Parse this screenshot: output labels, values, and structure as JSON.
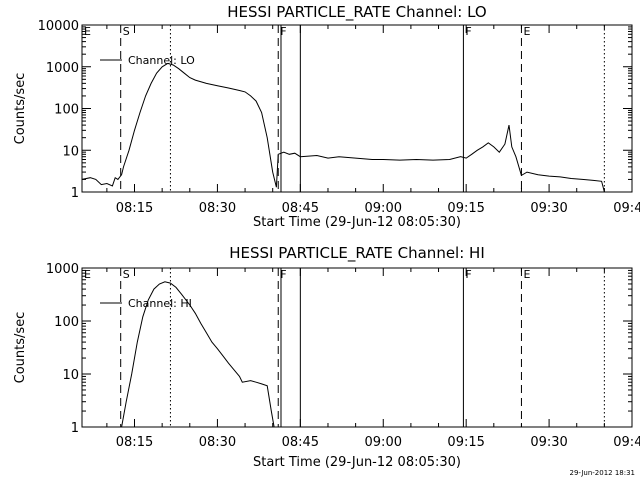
{
  "chart_data": [
    {
      "type": "line",
      "title": "HESSI PARTICLE_RATE Channel: LO",
      "xlabel": "Start Time (29-Jun-12 08:05:30)",
      "ylabel": "Counts/sec",
      "yscale": "log",
      "ylim": [
        1,
        10000
      ],
      "xlim": [
        "08:05:30",
        "09:45:00"
      ],
      "x_ticks": [
        "08:15",
        "08:30",
        "08:45",
        "09:00",
        "09:15",
        "09:30",
        "09:45"
      ],
      "y_ticks": [
        "1",
        "10",
        "100",
        "1000",
        "10000"
      ],
      "legend": {
        "label": "Channel: LO",
        "placement": "top-left"
      },
      "markers": [
        {
          "label": "E",
          "time": "08:05:30",
          "style": "solid"
        },
        {
          "label": "S",
          "time": "08:12:30",
          "style": "dashed"
        },
        {
          "label": "",
          "time": "08:21:30",
          "style": "dotted"
        },
        {
          "label": "F",
          "time": "08:41:00",
          "style": "dashed"
        },
        {
          "label": "",
          "time": "08:41:30",
          "style": "solid"
        },
        {
          "label": "",
          "time": "08:45:00",
          "style": "solid"
        },
        {
          "label": "F",
          "time": "09:14:30",
          "style": "solid"
        },
        {
          "label": "E",
          "time": "09:25:00",
          "style": "dashed"
        },
        {
          "label": "",
          "time": "09:40:00",
          "style": "dotted"
        }
      ],
      "series": [
        {
          "values": [
            [
              "08:05:30",
              2
            ],
            [
              "08:07:00",
              2.2
            ],
            [
              "08:08:00",
              2
            ],
            [
              "08:09:00",
              1.5
            ],
            [
              "08:10:00",
              1.6
            ],
            [
              "08:11:00",
              1.4
            ],
            [
              "08:11:30",
              2.2
            ],
            [
              "08:12:00",
              2
            ],
            [
              "08:12:40",
              2.6
            ],
            [
              "08:13:00",
              4
            ],
            [
              "08:14:00",
              10
            ],
            [
              "08:15:00",
              30
            ],
            [
              "08:16:00",
              80
            ],
            [
              "08:17:00",
              200
            ],
            [
              "08:18:00",
              400
            ],
            [
              "08:19:00",
              700
            ],
            [
              "08:20:00",
              1000
            ],
            [
              "08:21:00",
              1200
            ],
            [
              "08:22:00",
              1100
            ],
            [
              "08:23:00",
              900
            ],
            [
              "08:24:00",
              700
            ],
            [
              "08:25:00",
              550
            ],
            [
              "08:26:00",
              480
            ],
            [
              "08:28:00",
              400
            ],
            [
              "08:30:00",
              350
            ],
            [
              "08:32:00",
              310
            ],
            [
              "08:34:00",
              270
            ],
            [
              "08:35:00",
              250
            ],
            [
              "08:36:00",
              200
            ],
            [
              "08:37:00",
              150
            ],
            [
              "08:38:00",
              80
            ],
            [
              "08:39:00",
              20
            ],
            [
              "08:40:00",
              3
            ],
            [
              "08:40:40",
              1.3
            ],
            [
              "08:41:00",
              8
            ],
            [
              "08:42:00",
              9
            ],
            [
              "08:43:00",
              8
            ],
            [
              "08:44:00",
              8.5
            ],
            [
              "08:45:00",
              7
            ],
            [
              "08:48:00",
              7.5
            ],
            [
              "08:50:00",
              6.5
            ],
            [
              "08:52:00",
              7
            ],
            [
              "08:55:00",
              6.5
            ],
            [
              "08:58:00",
              6
            ],
            [
              "09:00:00",
              6
            ],
            [
              "09:03:00",
              5.8
            ],
            [
              "09:06:00",
              6
            ],
            [
              "09:09:00",
              5.8
            ],
            [
              "09:12:00",
              6
            ],
            [
              "09:14:00",
              7
            ],
            [
              "09:15:00",
              6.5
            ],
            [
              "09:16:00",
              8
            ],
            [
              "09:17:00",
              10
            ],
            [
              "09:18:00",
              12
            ],
            [
              "09:19:00",
              15
            ],
            [
              "09:20:00",
              12
            ],
            [
              "09:21:00",
              9
            ],
            [
              "09:22:00",
              14
            ],
            [
              "09:22:45",
              40
            ],
            [
              "09:23:15",
              12
            ],
            [
              "09:24:00",
              7
            ],
            [
              "09:25:00",
              2.5
            ],
            [
              "09:26:00",
              3
            ],
            [
              "09:28:00",
              2.6
            ],
            [
              "09:30:00",
              2.4
            ],
            [
              "09:32:00",
              2.3
            ],
            [
              "09:34:00",
              2.1
            ],
            [
              "09:36:00",
              2
            ],
            [
              "09:38:00",
              1.9
            ],
            [
              "09:39:30",
              1.8
            ],
            [
              "09:40:00",
              1
            ]
          ]
        }
      ]
    },
    {
      "type": "line",
      "title": "HESSI PARTICLE_RATE Channel: HI",
      "xlabel": "Start Time (29-Jun-12 08:05:30)",
      "ylabel": "Counts/sec",
      "yscale": "log",
      "ylim": [
        1,
        1000
      ],
      "xlim": [
        "08:05:30",
        "09:45:00"
      ],
      "x_ticks": [
        "08:15",
        "08:30",
        "08:45",
        "09:00",
        "09:15",
        "09:30",
        "09:45"
      ],
      "y_ticks": [
        "1",
        "10",
        "100",
        "1000"
      ],
      "legend": {
        "label": "Channel: HI",
        "placement": "top-left"
      },
      "markers": [
        {
          "label": "E",
          "time": "08:05:30",
          "style": "solid"
        },
        {
          "label": "S",
          "time": "08:12:30",
          "style": "dashed"
        },
        {
          "label": "",
          "time": "08:21:30",
          "style": "dotted"
        },
        {
          "label": "F",
          "time": "08:41:00",
          "style": "dashed"
        },
        {
          "label": "",
          "time": "08:41:30",
          "style": "solid"
        },
        {
          "label": "",
          "time": "08:45:00",
          "style": "solid"
        },
        {
          "label": "F",
          "time": "09:14:30",
          "style": "solid"
        },
        {
          "label": "E",
          "time": "09:25:00",
          "style": "dashed"
        },
        {
          "label": "",
          "time": "09:40:00",
          "style": "dotted"
        }
      ],
      "series": [
        {
          "values": [
            [
              "08:12:40",
              1
            ],
            [
              "08:13:30",
              3
            ],
            [
              "08:14:30",
              10
            ],
            [
              "08:15:30",
              40
            ],
            [
              "08:16:30",
              120
            ],
            [
              "08:17:30",
              250
            ],
            [
              "08:18:30",
              400
            ],
            [
              "08:19:30",
              500
            ],
            [
              "08:20:30",
              550
            ],
            [
              "08:21:30",
              520
            ],
            [
              "08:22:30",
              430
            ],
            [
              "08:23:30",
              320
            ],
            [
              "08:25:00",
              200
            ],
            [
              "08:26:00",
              140
            ],
            [
              "08:27:00",
              90
            ],
            [
              "08:28:00",
              60
            ],
            [
              "08:29:00",
              40
            ],
            [
              "08:30:00",
              30
            ],
            [
              "08:31:00",
              22
            ],
            [
              "08:32:00",
              16
            ],
            [
              "08:33:00",
              12
            ],
            [
              "08:34:00",
              9
            ],
            [
              "08:34:30",
              7
            ],
            [
              "08:36:00",
              7.5
            ],
            [
              "08:37:00",
              7
            ],
            [
              "08:38:00",
              6.5
            ],
            [
              "08:39:00",
              6
            ],
            [
              "08:39:45",
              2
            ],
            [
              "08:40:15",
              1
            ]
          ]
        }
      ]
    }
  ],
  "footer": {
    "timestamp": "29-Jun-2012 18:31"
  }
}
